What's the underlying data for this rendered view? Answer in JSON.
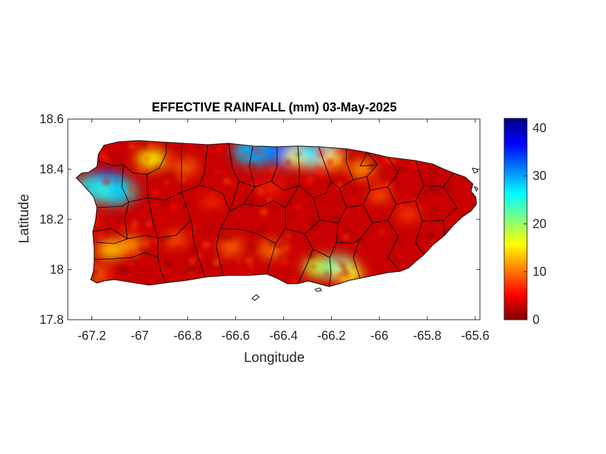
{
  "chart_data": {
    "type": "heatmap",
    "title": "EFFECTIVE RAINFALL (mm) 03-May-2025",
    "xlabel": "Longitude",
    "ylabel": "Latitude",
    "xlim": [
      -67.3,
      -65.58
    ],
    "ylim": [
      17.8,
      18.6
    ],
    "x_ticks": [
      -67.2,
      -67.0,
      -66.8,
      -66.6,
      -66.4,
      -66.2,
      -66.0,
      -65.8,
      -65.6
    ],
    "x_tick_labels": [
      "-67.2",
      "-67",
      "-66.8",
      "-66.6",
      "-66.4",
      "-66.2",
      "-66",
      "-65.8",
      "-65.6"
    ],
    "y_ticks": [
      17.8,
      18.0,
      18.2,
      18.4,
      18.6
    ],
    "y_tick_labels": [
      "17.8",
      "18",
      "18.2",
      "18.4",
      "18.6"
    ],
    "colorbar": {
      "colormap": "jet",
      "range": [
        0,
        42
      ],
      "ticks": [
        0,
        10,
        20,
        30,
        40
      ],
      "tick_labels": [
        "0",
        "10",
        "20",
        "30",
        "40"
      ]
    },
    "background_value": 3,
    "hotspots": [
      {
        "lon": -67.15,
        "lat": 18.33,
        "value": 36
      },
      {
        "lon": -67.1,
        "lat": 18.31,
        "value": 26
      },
      {
        "lon": -67.2,
        "lat": 18.32,
        "value": 24
      },
      {
        "lon": -66.95,
        "lat": 18.44,
        "value": 16
      },
      {
        "lon": -66.81,
        "lat": 18.41,
        "value": 10
      },
      {
        "lon": -66.52,
        "lat": 18.47,
        "value": 28
      },
      {
        "lon": -66.38,
        "lat": 18.47,
        "value": 32
      },
      {
        "lon": -66.33,
        "lat": 18.45,
        "value": 16
      },
      {
        "lon": -66.28,
        "lat": 18.44,
        "value": 14
      },
      {
        "lon": -66.25,
        "lat": 18.46,
        "value": 26
      },
      {
        "lon": -66.2,
        "lat": 18.44,
        "value": 14
      },
      {
        "lon": -66.07,
        "lat": 18.4,
        "value": 12
      },
      {
        "lon": -66.0,
        "lat": 18.3,
        "value": 9
      },
      {
        "lon": -65.88,
        "lat": 18.22,
        "value": 8
      },
      {
        "lon": -66.25,
        "lat": 18.01,
        "value": 18
      },
      {
        "lon": -66.17,
        "lat": 18.01,
        "value": 21
      },
      {
        "lon": -66.13,
        "lat": 17.98,
        "value": 16
      },
      {
        "lon": -66.45,
        "lat": 18.08,
        "value": 11
      },
      {
        "lon": -66.62,
        "lat": 18.09,
        "value": 10
      },
      {
        "lon": -66.85,
        "lat": 18.12,
        "value": 9
      },
      {
        "lon": -67.12,
        "lat": 18.08,
        "value": 14
      },
      {
        "lon": -67.04,
        "lat": 18.1,
        "value": 12
      },
      {
        "lon": -67.18,
        "lat": 17.98,
        "value": 10
      },
      {
        "lon": -67.22,
        "lat": 18.18,
        "value": 8
      },
      {
        "lon": -66.7,
        "lat": 18.27,
        "value": 7
      },
      {
        "lon": -66.45,
        "lat": 18.33,
        "value": 7
      }
    ],
    "grid": false,
    "legend": "colorbar-right"
  },
  "colors": {
    "axis": "#262626",
    "boundary": "#111111",
    "background": "#ffffff"
  }
}
